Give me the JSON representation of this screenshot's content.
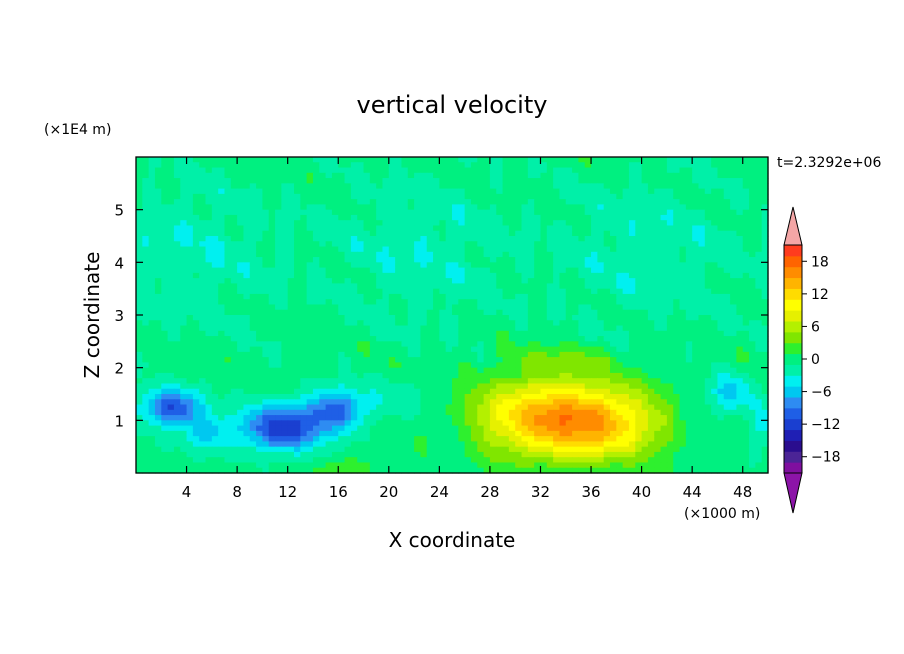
{
  "chart_data": {
    "type": "heatmap",
    "title": "vertical velocity",
    "xlabel": "X coordinate",
    "ylabel": "Z coordinate",
    "x_unit": "(×1000 m)",
    "y_unit": "(×1E4 m)",
    "time_label": "t=2.3292e+06",
    "xlim": [
      0,
      50
    ],
    "ylim": [
      0,
      6
    ],
    "x_ticks": [
      4,
      8,
      12,
      16,
      20,
      24,
      28,
      32,
      36,
      40,
      44,
      48
    ],
    "y_ticks": [
      1,
      2,
      3,
      4,
      5
    ],
    "colorbar": {
      "ticks": [
        18,
        12,
        6,
        0,
        -6,
        -12,
        -18
      ],
      "range": [
        -21,
        21
      ],
      "levels": [
        -21,
        -19,
        -17,
        -15,
        -13,
        -11,
        -9,
        -7,
        -5,
        -3,
        -1,
        1,
        3,
        5,
        7,
        9,
        11,
        13,
        15,
        17,
        19,
        21
      ],
      "colors": [
        "#7f0f9f",
        "#4b2496",
        "#2a0d8e",
        "#1f1fb4",
        "#1a3fd0",
        "#1f5fe6",
        "#2e8cf2",
        "#00c8f0",
        "#00f0f0",
        "#00f0a8",
        "#00f080",
        "#2ef02e",
        "#80e600",
        "#b4f000",
        "#e6f000",
        "#ffff00",
        "#ffdc00",
        "#ffb400",
        "#ff8c00",
        "#ff6400",
        "#ff3c1e",
        "#f0141e"
      ],
      "over_color": "#f4a6a6",
      "under_color": "#8c14a8"
    },
    "features": [
      {
        "x": 33.5,
        "z": 1.05,
        "sx": 6.5,
        "sz": 0.75,
        "amp": 15.5
      },
      {
        "x": 38.0,
        "z": 0.8,
        "sx": 4.5,
        "sz": 0.55,
        "amp": 4.0
      },
      {
        "x": 11.5,
        "z": 0.85,
        "sx": 3.3,
        "sz": 0.45,
        "amp": -12.0
      },
      {
        "x": 15.8,
        "z": 1.2,
        "sx": 2.3,
        "sz": 0.4,
        "amp": -9.0
      },
      {
        "x": 2.8,
        "z": 1.25,
        "sx": 2.4,
        "sz": 0.35,
        "amp": -11.0
      },
      {
        "x": 5.5,
        "z": 0.75,
        "sx": 2.0,
        "sz": 0.35,
        "amp": -5.0
      },
      {
        "x": 47.0,
        "z": 1.5,
        "sx": 1.5,
        "sz": 0.4,
        "amp": -6.0
      },
      {
        "x": 49.5,
        "z": 0.9,
        "sx": 1.0,
        "sz": 0.5,
        "amp": -4.0
      },
      {
        "x": 21.0,
        "z": 1.4,
        "sx": 3.5,
        "sz": 0.35,
        "amp": -2.5
      },
      {
        "x": 16.5,
        "z": 0.1,
        "sx": 2.0,
        "sz": 0.15,
        "amp": 3.0
      },
      {
        "x": 34.0,
        "z": 2.2,
        "sx": 4.0,
        "sz": 0.2,
        "amp": 2.5
      },
      {
        "x": 44.0,
        "z": 1.2,
        "sx": 1.5,
        "sz": 0.5,
        "amp": -2.0
      },
      {
        "x": 25.0,
        "z": 0.7,
        "sx": 1.5,
        "sz": 0.4,
        "amp": -2.5
      }
    ],
    "upper_band": {
      "z_center": 4.2,
      "z_width": 1.5,
      "amp": -1.8
    }
  }
}
